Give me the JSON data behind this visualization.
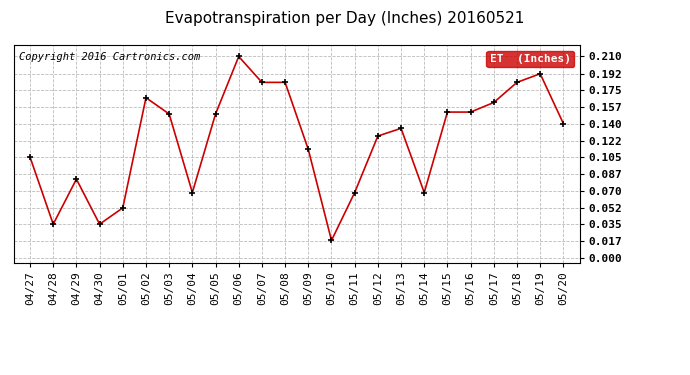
{
  "title": "Evapotranspiration per Day (Inches) 20160521",
  "copyright": "Copyright 2016 Cartronics.com",
  "legend_label": "ET  (Inches)",
  "legend_bg": "#cc0000",
  "legend_fg": "#ffffff",
  "dates": [
    "04/27",
    "04/28",
    "04/29",
    "04/30",
    "05/01",
    "05/02",
    "05/03",
    "05/04",
    "05/05",
    "05/06",
    "05/07",
    "05/08",
    "05/09",
    "05/10",
    "05/11",
    "05/12",
    "05/13",
    "05/14",
    "05/15",
    "05/16",
    "05/17",
    "05/18",
    "05/19",
    "05/20"
  ],
  "values": [
    0.105,
    0.035,
    0.082,
    0.035,
    0.052,
    0.167,
    0.15,
    0.068,
    0.15,
    0.21,
    0.183,
    0.183,
    0.113,
    0.018,
    0.068,
    0.127,
    0.135,
    0.068,
    0.152,
    0.152,
    0.162,
    0.183,
    0.192,
    0.14
  ],
  "yticks": [
    0.0,
    0.017,
    0.035,
    0.052,
    0.07,
    0.087,
    0.105,
    0.122,
    0.14,
    0.157,
    0.175,
    0.192,
    0.21
  ],
  "ylim": [
    -0.005,
    0.222
  ],
  "line_color": "#cc0000",
  "marker": "+",
  "marker_color": "#000000",
  "bg_color": "#ffffff",
  "grid_color": "#bbbbbb",
  "title_fontsize": 11,
  "copyright_fontsize": 7.5,
  "tick_fontsize": 8,
  "legend_fontsize": 8
}
